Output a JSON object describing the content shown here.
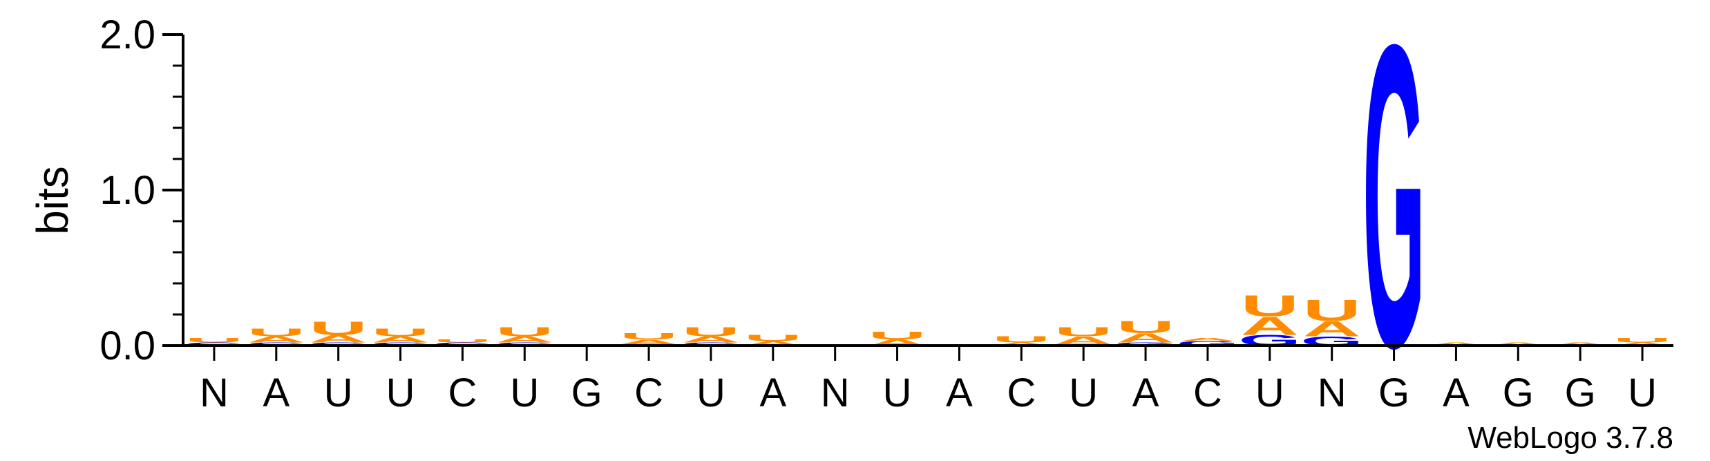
{
  "chart_data": {
    "type": "sequence-logo",
    "ylabel": "bits",
    "ylim": [
      0,
      2.0
    ],
    "yticks": [
      "0.0",
      "1.0",
      "2.0"
    ],
    "ytick_values": [
      0,
      1,
      2
    ],
    "grid": false,
    "colors": {
      "A": "#ff8c00",
      "U": "#ff8c00",
      "G": "#0000ff",
      "C": "#0000ff"
    },
    "positions": [
      {
        "label": "N",
        "stack": [
          [
            "C",
            0.02
          ],
          [
            "U",
            0.03
          ]
        ]
      },
      {
        "label": "A",
        "stack": [
          [
            "C",
            0.02
          ],
          [
            "A",
            0.04
          ],
          [
            "U",
            0.05
          ]
        ]
      },
      {
        "label": "U",
        "stack": [
          [
            "C",
            0.02
          ],
          [
            "A",
            0.05
          ],
          [
            "U",
            0.09
          ]
        ]
      },
      {
        "label": "U",
        "stack": [
          [
            "C",
            0.02
          ],
          [
            "A",
            0.04
          ],
          [
            "U",
            0.05
          ]
        ]
      },
      {
        "label": "C",
        "stack": [
          [
            "C",
            0.02
          ],
          [
            "U",
            0.02
          ]
        ]
      },
      {
        "label": "U",
        "stack": [
          [
            "C",
            0.02
          ],
          [
            "A",
            0.04
          ],
          [
            "U",
            0.06
          ]
        ]
      },
      {
        "label": "G",
        "stack": []
      },
      {
        "label": "C",
        "stack": [
          [
            "C",
            0.01
          ],
          [
            "A",
            0.03
          ],
          [
            "U",
            0.04
          ]
        ]
      },
      {
        "label": "U",
        "stack": [
          [
            "C",
            0.02
          ],
          [
            "A",
            0.04
          ],
          [
            "U",
            0.06
          ]
        ]
      },
      {
        "label": "A",
        "stack": [
          [
            "A",
            0.03
          ],
          [
            "U",
            0.04
          ]
        ]
      },
      {
        "label": "N",
        "stack": []
      },
      {
        "label": "U",
        "stack": [
          [
            "A",
            0.04
          ],
          [
            "U",
            0.05
          ]
        ]
      },
      {
        "label": "A",
        "stack": []
      },
      {
        "label": "C",
        "stack": [
          [
            "A",
            0.02
          ],
          [
            "U",
            0.04
          ]
        ]
      },
      {
        "label": "U",
        "stack": [
          [
            "C",
            0.01
          ],
          [
            "A",
            0.05
          ],
          [
            "U",
            0.06
          ]
        ]
      },
      {
        "label": "A",
        "stack": [
          [
            "G",
            0.02
          ],
          [
            "A",
            0.06
          ],
          [
            "U",
            0.08
          ]
        ]
      },
      {
        "label": "C",
        "stack": [
          [
            "G",
            0.03
          ],
          [
            "A",
            0.02
          ]
        ]
      },
      {
        "label": "U",
        "stack": [
          [
            "G",
            0.07
          ],
          [
            "A",
            0.12
          ],
          [
            "U",
            0.14
          ]
        ]
      },
      {
        "label": "N",
        "stack": [
          [
            "G",
            0.06
          ],
          [
            "A",
            0.1
          ],
          [
            "U",
            0.14
          ]
        ]
      },
      {
        "label": "G",
        "stack": [
          [
            "G",
            2.0
          ]
        ]
      },
      {
        "label": "A",
        "stack": [
          [
            "A",
            0.02
          ]
        ]
      },
      {
        "label": "G",
        "stack": [
          [
            "A",
            0.02
          ]
        ]
      },
      {
        "label": "G",
        "stack": [
          [
            "A",
            0.02
          ]
        ]
      },
      {
        "label": "U",
        "stack": [
          [
            "A",
            0.02
          ],
          [
            "U",
            0.03
          ]
        ]
      }
    ]
  },
  "footer": {
    "credit": "WebLogo 3.7.8"
  }
}
